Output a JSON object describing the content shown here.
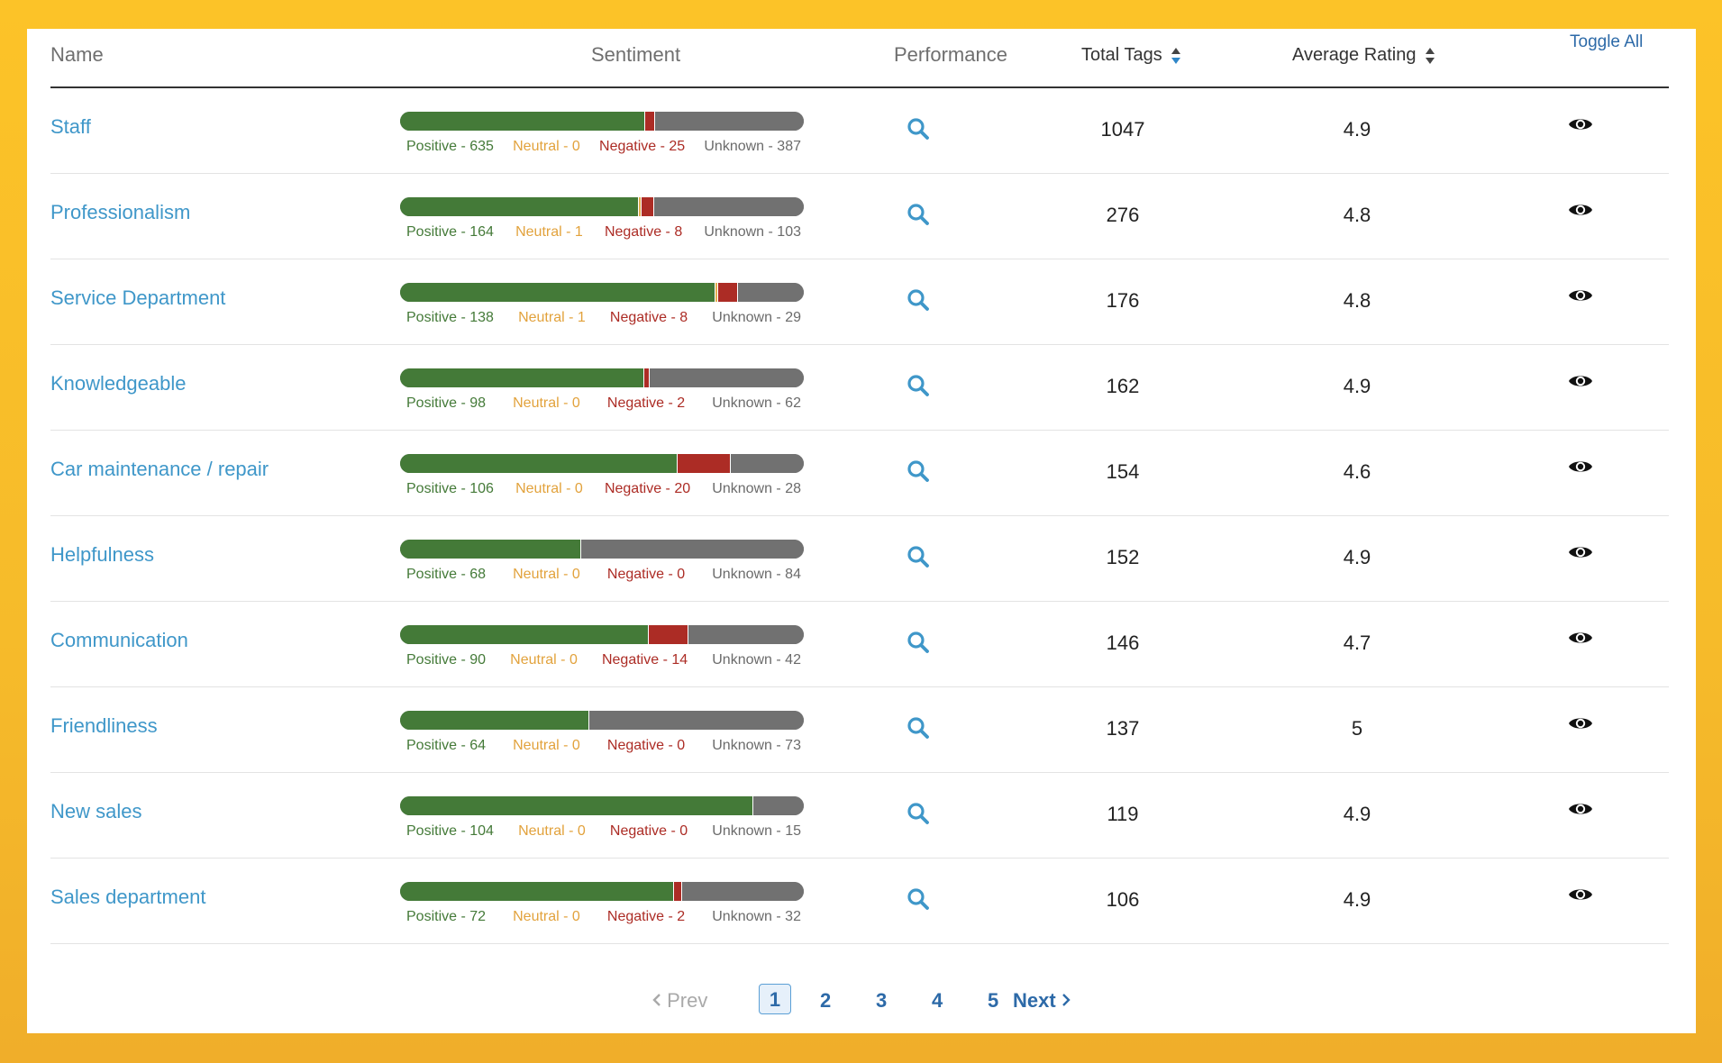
{
  "header": {
    "name": "Name",
    "sentiment": "Sentiment",
    "performance": "Performance",
    "total_tags": "Total Tags",
    "average_rating": "Average Rating",
    "toggle_all": "Toggle All"
  },
  "colors": {
    "positive": "#447a38",
    "neutral": "#e2ad4e",
    "negative": "#ac2c25",
    "unknown": "#717171",
    "link": "#3f97c9"
  },
  "rows": [
    {
      "name": "Staff",
      "positive": 635,
      "neutral": 0,
      "negative": 25,
      "unknown": 387,
      "pos_label": "Positive - 635",
      "neu_label": "Neutral - 0",
      "neg_label": "Negative - 25",
      "unk_label": "Unknown - 387",
      "total_tags": "1047",
      "avg_rating": "4.9"
    },
    {
      "name": "Professionalism",
      "positive": 164,
      "neutral": 1,
      "negative": 8,
      "unknown": 103,
      "pos_label": "Positive - 164",
      "neu_label": "Neutral - 1",
      "neg_label": "Negative - 8",
      "unk_label": "Unknown - 103",
      "total_tags": "276",
      "avg_rating": "4.8"
    },
    {
      "name": "Service Department",
      "positive": 138,
      "neutral": 1,
      "negative": 8,
      "unknown": 29,
      "pos_label": "Positive - 138",
      "neu_label": "Neutral - 1",
      "neg_label": "Negative - 8",
      "unk_label": "Unknown - 29",
      "total_tags": "176",
      "avg_rating": "4.8"
    },
    {
      "name": "Knowledgeable",
      "positive": 98,
      "neutral": 0,
      "negative": 2,
      "unknown": 62,
      "pos_label": "Positive - 98",
      "neu_label": "Neutral - 0",
      "neg_label": "Negative - 2",
      "unk_label": "Unknown - 62",
      "total_tags": "162",
      "avg_rating": "4.9"
    },
    {
      "name": "Car maintenance / repair",
      "positive": 106,
      "neutral": 0,
      "negative": 20,
      "unknown": 28,
      "pos_label": "Positive - 106",
      "neu_label": "Neutral - 0",
      "neg_label": "Negative - 20",
      "unk_label": "Unknown - 28",
      "total_tags": "154",
      "avg_rating": "4.6"
    },
    {
      "name": "Helpfulness",
      "positive": 68,
      "neutral": 0,
      "negative": 0,
      "unknown": 84,
      "pos_label": "Positive - 68",
      "neu_label": "Neutral - 0",
      "neg_label": "Negative - 0",
      "unk_label": "Unknown - 84",
      "total_tags": "152",
      "avg_rating": "4.9"
    },
    {
      "name": "Communication",
      "positive": 90,
      "neutral": 0,
      "negative": 14,
      "unknown": 42,
      "pos_label": "Positive - 90",
      "neu_label": "Neutral - 0",
      "neg_label": "Negative - 14",
      "unk_label": "Unknown - 42",
      "total_tags": "146",
      "avg_rating": "4.7"
    },
    {
      "name": "Friendliness",
      "positive": 64,
      "neutral": 0,
      "negative": 0,
      "unknown": 73,
      "pos_label": "Positive - 64",
      "neu_label": "Neutral - 0",
      "neg_label": "Negative - 0",
      "unk_label": "Unknown - 73",
      "total_tags": "137",
      "avg_rating": "5"
    },
    {
      "name": "New sales",
      "positive": 104,
      "neutral": 0,
      "negative": 0,
      "unknown": 15,
      "pos_label": "Positive - 104",
      "neu_label": "Neutral - 0",
      "neg_label": "Negative - 0",
      "unk_label": "Unknown - 15",
      "total_tags": "119",
      "avg_rating": "4.9"
    },
    {
      "name": "Sales department",
      "positive": 72,
      "neutral": 0,
      "negative": 2,
      "unknown": 32,
      "pos_label": "Positive - 72",
      "neu_label": "Neutral - 0",
      "neg_label": "Negative - 2",
      "unk_label": "Unknown - 32",
      "total_tags": "106",
      "avg_rating": "4.9"
    }
  ],
  "icons": {
    "performance": "search-icon",
    "visibility": "eye-icon",
    "sort": "sort-icon"
  },
  "pagination": {
    "prev": "Prev",
    "pages": [
      "1",
      "2",
      "3",
      "4",
      "5"
    ],
    "current": "1",
    "next": "Next"
  }
}
